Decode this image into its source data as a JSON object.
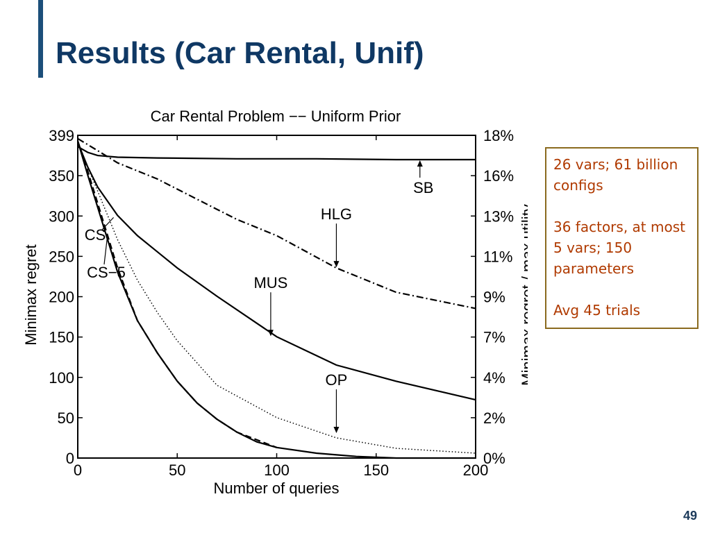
{
  "slide": {
    "title": "Results (Car Rental, Unif)",
    "page_number": "49",
    "info_lines": [
      "26 vars;  61 billion configs",
      "36 factors, at most 5 vars; 150 parameters",
      "Avg 45 trials"
    ]
  },
  "chart_data": {
    "type": "line",
    "title": "Car Rental Problem −− Uniform Prior",
    "xlabel": "Number of queries",
    "ylabel": "Minimax regret",
    "y2label": "Minimax regret / max utility",
    "xlim": [
      0,
      200
    ],
    "ylim": [
      0,
      399
    ],
    "x_ticks": [
      "0",
      "50",
      "100",
      "150",
      "200"
    ],
    "y_ticks": [
      "0",
      "50",
      "100",
      "150",
      "200",
      "250",
      "300",
      "350",
      "399"
    ],
    "y2_ticks": [
      "0%",
      "2%",
      "4%",
      "7%",
      "9%",
      "11%",
      "13%",
      "16%",
      "18%"
    ],
    "grid": false,
    "series": [
      {
        "name": "SB",
        "style": "solid",
        "x": [
          0,
          5,
          10,
          20,
          40,
          80,
          120,
          160,
          200
        ],
        "y": [
          385,
          378,
          374,
          372,
          371,
          370,
          370,
          369,
          369
        ]
      },
      {
        "name": "HLG",
        "style": "dashdot",
        "x": [
          0,
          10,
          20,
          40,
          60,
          80,
          100,
          130,
          160,
          200
        ],
        "y": [
          395,
          380,
          365,
          345,
          320,
          295,
          275,
          235,
          205,
          185
        ]
      },
      {
        "name": "MUS",
        "style": "solid",
        "x": [
          0,
          5,
          10,
          20,
          30,
          40,
          50,
          70,
          100,
          130,
          160,
          200
        ],
        "y": [
          390,
          360,
          335,
          300,
          275,
          255,
          235,
          200,
          150,
          115,
          95,
          72
        ]
      },
      {
        "name": "OP",
        "style": "dotted",
        "x": [
          0,
          5,
          10,
          20,
          30,
          40,
          50,
          70,
          100,
          130,
          160,
          200
        ],
        "y": [
          392,
          360,
          330,
          270,
          220,
          180,
          145,
          90,
          50,
          25,
          12,
          6
        ]
      },
      {
        "name": "CS",
        "style": "solid",
        "x": [
          0,
          5,
          10,
          15,
          20,
          30,
          40,
          50,
          60,
          70,
          80,
          90,
          100,
          120,
          140,
          160,
          200
        ],
        "y": [
          392,
          350,
          310,
          270,
          230,
          170,
          130,
          95,
          68,
          48,
          32,
          20,
          13,
          6,
          2,
          0,
          0
        ]
      },
      {
        "name": "CS−5",
        "style": "dashed",
        "x": [
          0,
          5,
          10,
          15,
          20,
          30,
          40,
          50,
          60,
          70,
          80,
          100
        ],
        "y": [
          392,
          355,
          315,
          275,
          235,
          170,
          130,
          95,
          68,
          48,
          32,
          13
        ]
      }
    ],
    "annotations": [
      {
        "text": "SB",
        "x": 172,
        "y": 369
      },
      {
        "text": "HLG",
        "x": 130,
        "y": 235
      },
      {
        "text": "MUS",
        "x": 97,
        "y": 150
      },
      {
        "text": "OP",
        "x": 130,
        "y": 30
      },
      {
        "text": "CS",
        "x": 18,
        "y": 300
      },
      {
        "text": "CS−5",
        "x": 15,
        "y": 280
      }
    ]
  }
}
